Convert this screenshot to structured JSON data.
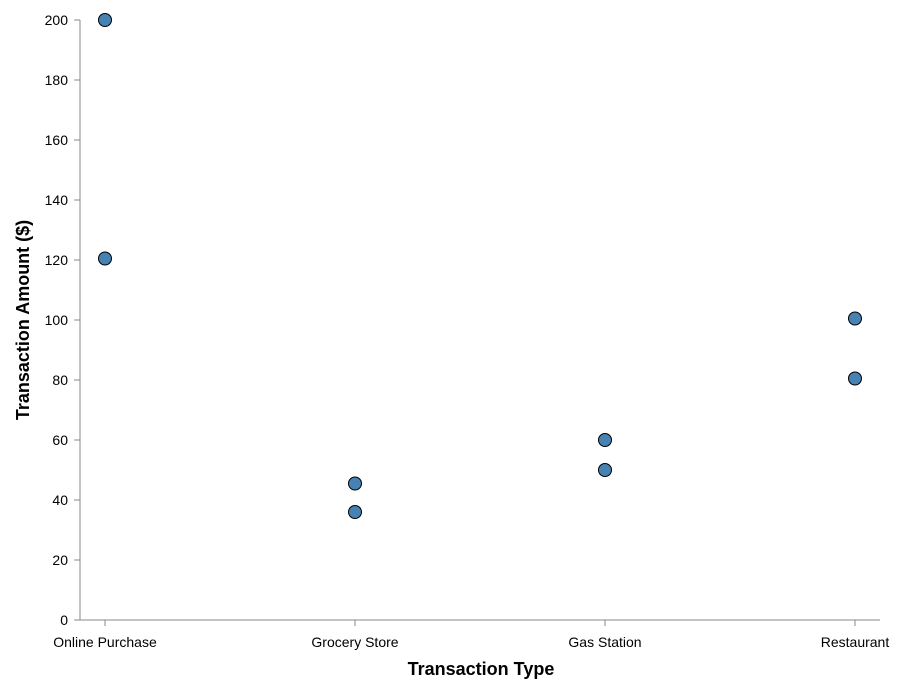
{
  "chart_data": {
    "type": "scatter",
    "title": "",
    "xlabel": "Transaction Type",
    "ylabel": "Transaction Amount ($)",
    "categories": [
      "Online Purchase",
      "Grocery Store",
      "Gas Station",
      "Restaurant"
    ],
    "ylim": [
      0,
      200
    ],
    "y_ticks": [
      0,
      20,
      40,
      60,
      80,
      100,
      120,
      140,
      160,
      180,
      200
    ],
    "grid": false,
    "point_color": "#4682b4",
    "points": [
      {
        "x": "Online Purchase",
        "y": 200
      },
      {
        "x": "Online Purchase",
        "y": 120.5
      },
      {
        "x": "Grocery Store",
        "y": 45.5
      },
      {
        "x": "Grocery Store",
        "y": 36
      },
      {
        "x": "Gas Station",
        "y": 60
      },
      {
        "x": "Gas Station",
        "y": 50
      },
      {
        "x": "Restaurant",
        "y": 100.5
      },
      {
        "x": "Restaurant",
        "y": 80.5
      }
    ]
  }
}
